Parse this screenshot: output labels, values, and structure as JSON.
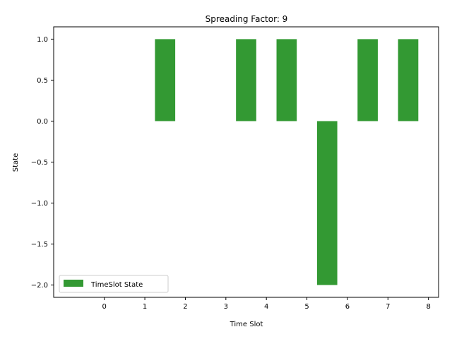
{
  "chart_data": {
    "type": "bar",
    "title": "Spreading Factor: 9",
    "xlabel": "Time Slot",
    "ylabel": "State",
    "x": [
      1.5,
      3.5,
      4.5,
      5.5,
      6.5,
      7.5
    ],
    "values": [
      1.0,
      1.0,
      1.0,
      -2.0,
      1.0,
      1.0
    ],
    "bar_width": 0.5,
    "xlim": [
      -1.25,
      8.25
    ],
    "ylim": [
      -2.15,
      1.15
    ],
    "xticks": [
      "0",
      "1",
      "2",
      "3",
      "4",
      "5",
      "6",
      "7",
      "8"
    ],
    "yticks": [
      "1.0",
      "0.5",
      "0.0",
      "−0.5",
      "−1.0",
      "−1.5",
      "−2.0"
    ],
    "series": [
      {
        "name": "TimeSlot State",
        "color": "#339933"
      }
    ],
    "legend": "lower-left",
    "grid": false
  }
}
